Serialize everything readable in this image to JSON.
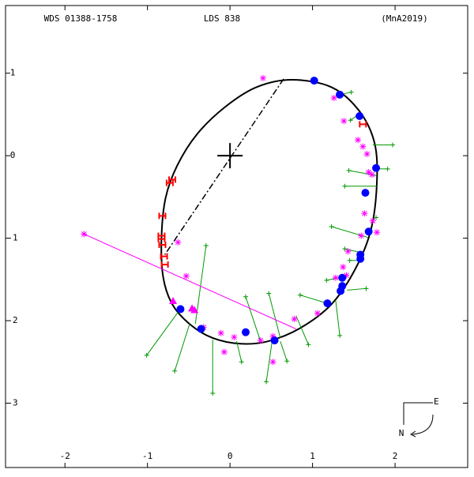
{
  "chart_data": {
    "type": "scatter",
    "title": "WDS 01388-1758",
    "subtitle": "LDS 838",
    "reference": "(MnA2019)",
    "compass": {
      "east": "E",
      "north": "N"
    },
    "xlim": [
      -2.72,
      2.88
    ],
    "ylim": [
      -3.78,
      1.82
    ],
    "xticks": [
      -2,
      -1,
      0,
      1,
      2
    ],
    "yticks": [
      1,
      0,
      -1,
      -2,
      -3
    ],
    "series": [
      {
        "marker": "orbit",
        "color": "#000000",
        "x": [
          0.75,
          1.23,
          1.56,
          1.75,
          1.78,
          1.71,
          1.52,
          1.23,
          0.85,
          0.46,
          0.13,
          -0.21,
          -0.49,
          -0.7,
          -0.81,
          -0.83,
          -0.78,
          -0.64,
          -0.4,
          -0.06,
          0.32
        ],
        "y": [
          0.92,
          0.83,
          0.55,
          0.16,
          -0.32,
          -0.89,
          -1.37,
          -1.8,
          -2.09,
          -2.25,
          -2.28,
          -2.21,
          -2.04,
          -1.8,
          -1.47,
          -0.99,
          -0.51,
          -0.12,
          0.26,
          0.59,
          0.83
        ]
      },
      {
        "marker": "dashdot",
        "color": "#000000",
        "x": [
          0.65,
          -0.79
        ],
        "y": [
          0.93,
          -1.2
        ]
      },
      {
        "marker": "cross",
        "color": "#000000",
        "x": [
          0
        ],
        "y": [
          0
        ]
      },
      {
        "marker": "plus",
        "color": "#009900",
        "x": [
          1.47,
          1.46,
          1.97,
          1.91,
          1.44,
          1.39,
          1.77,
          1.23,
          1.39,
          1.45,
          1.17,
          1.65,
          1.33,
          0.85,
          0.95,
          0.47,
          0.19,
          0.69,
          0.44,
          0.14,
          -0.21,
          -0.67,
          -1.01,
          -0.29
        ],
        "y": [
          0.77,
          0.43,
          0.13,
          -0.16,
          -0.18,
          -0.37,
          -0.75,
          -0.86,
          -1.13,
          -1.27,
          -1.51,
          -1.61,
          -2.18,
          -1.69,
          -2.29,
          -1.67,
          -1.71,
          -2.49,
          -2.74,
          -2.5,
          -2.88,
          -2.61,
          -2.42,
          -1.09
        ],
        "x2": [
          1.33,
          1.56,
          1.73,
          1.77,
          1.77,
          1.78,
          1.74,
          1.67,
          1.61,
          1.56,
          1.42,
          1.42,
          1.28,
          1.18,
          0.8,
          0.61,
          0.37,
          0.61,
          0.51,
          0.08,
          -0.21,
          -0.49,
          -0.61,
          -0.42
        ],
        "y2": [
          0.74,
          0.5,
          0.13,
          -0.16,
          -0.24,
          -0.37,
          -0.75,
          -0.99,
          -1.18,
          -1.27,
          -1.46,
          -1.63,
          -1.75,
          -1.79,
          -1.94,
          -2.21,
          -2.25,
          -2.25,
          -2.25,
          -2.25,
          -2.23,
          -2.04,
          -1.87,
          -2.04
        ]
      },
      {
        "marker": "asterisk",
        "color": "#ff00ff",
        "x": [
          0.4,
          1.26,
          1.38,
          1.55,
          1.61,
          1.66,
          1.68,
          1.72,
          1.63,
          1.73,
          1.78,
          1.59,
          1.43,
          1.37,
          1.41,
          1.28,
          1.06,
          0.78,
          0.52,
          0.52,
          0.37,
          0.05,
          -0.11,
          -0.07,
          -0.32,
          -0.53,
          -0.63
        ],
        "y": [
          0.94,
          0.7,
          0.42,
          0.19,
          0.11,
          0.02,
          -0.2,
          -0.23,
          -0.7,
          -0.79,
          -0.93,
          -0.97,
          -1.16,
          -1.35,
          -1.45,
          -1.48,
          -1.91,
          -1.98,
          -2.19,
          -2.5,
          -2.24,
          -2.2,
          -2.15,
          -2.38,
          -2.08,
          -1.46,
          -1.05
        ]
      },
      {
        "marker": "asterisk",
        "color": "#ff00ff",
        "x": [
          -1.77
        ],
        "y": [
          -0.95
        ],
        "x2": [
          0.8
        ],
        "y2": [
          -2.1
        ]
      },
      {
        "marker": "circle",
        "color": "#0000ff",
        "x": [
          1.02,
          1.33,
          1.57,
          1.77,
          1.64,
          1.68,
          1.58,
          1.58,
          1.36,
          1.36,
          1.34,
          1.18,
          0.54,
          0.19,
          -0.35,
          -0.6
        ],
        "y": [
          0.91,
          0.74,
          0.48,
          -0.15,
          -0.45,
          -0.92,
          -1.2,
          -1.25,
          -1.48,
          -1.58,
          -1.64,
          -1.79,
          -2.24,
          -2.14,
          -2.1,
          -1.86
        ]
      },
      {
        "marker": "hbar",
        "color": "#ff0000",
        "x": [
          1.61,
          -0.7,
          -0.73,
          -0.82,
          -0.83,
          -0.83,
          -0.82,
          -0.8,
          -0.79
        ],
        "y": [
          0.38,
          -0.29,
          -0.33,
          -0.73,
          -0.97,
          -1.01,
          -1.08,
          -1.22,
          -1.32
        ]
      },
      {
        "marker": "triangle",
        "color": "#ff00ff",
        "x": [
          -0.69,
          -0.46,
          -0.43
        ],
        "y": [
          -1.76,
          -1.85,
          -1.87
        ]
      }
    ]
  }
}
